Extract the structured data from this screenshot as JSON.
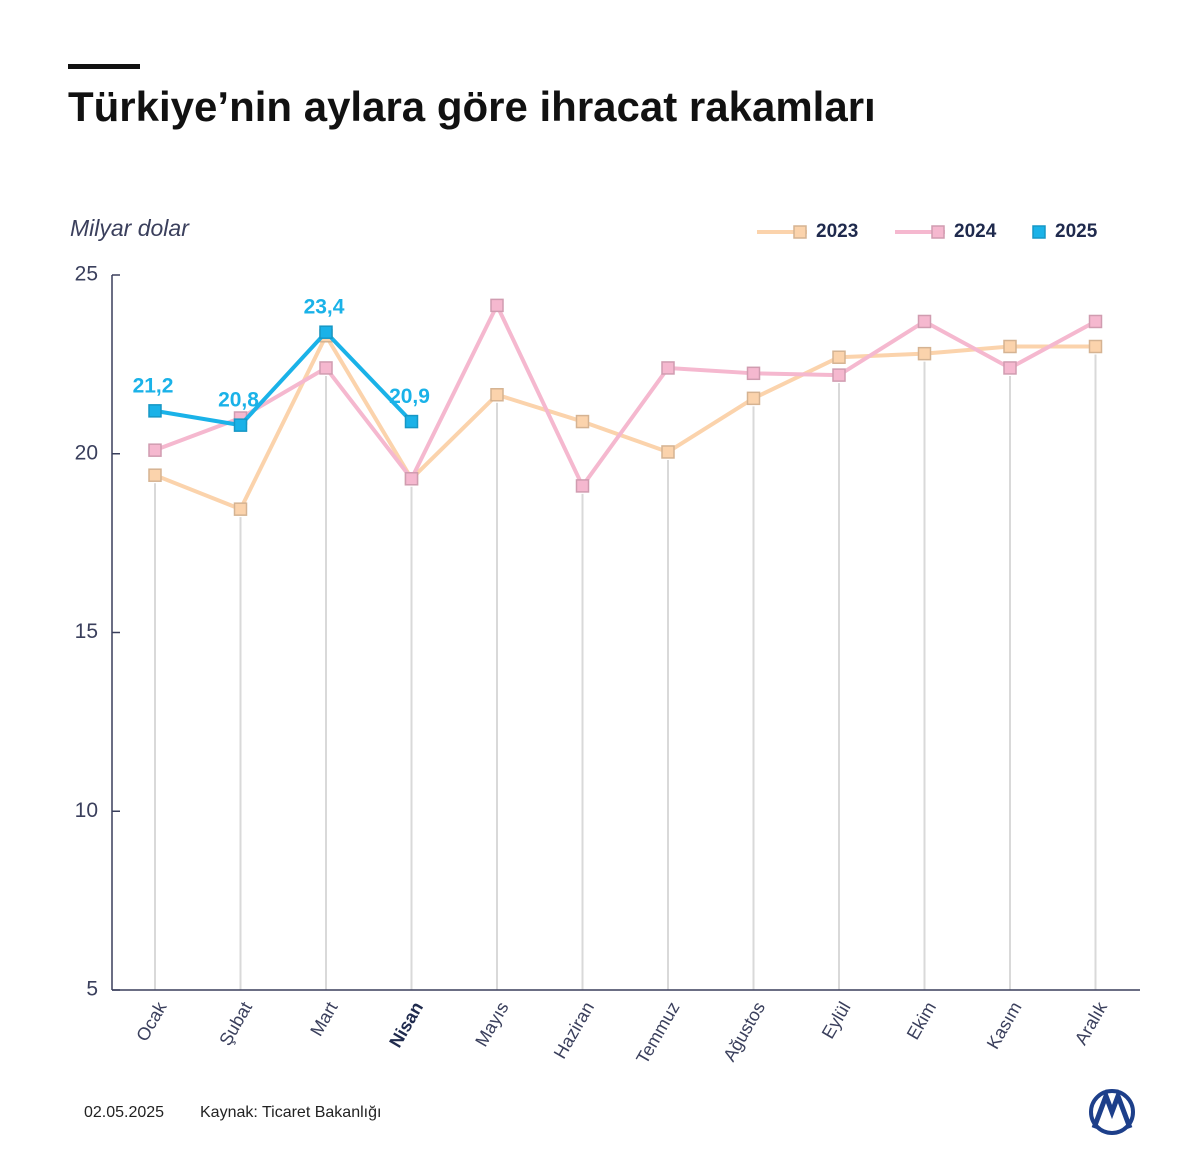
{
  "chart_data": {
    "type": "line",
    "title": "Türkiye’nin aylara göre ihracat rakamları",
    "y_axis_label": "Milyar dolar",
    "categories": [
      "Ocak",
      "Şubat",
      "Mart",
      "Nisan",
      "Mayıs",
      "Haziran",
      "Temmuz",
      "Ağustos",
      "Eylül",
      "Ekim",
      "Kasım",
      "Aralık"
    ],
    "series": [
      {
        "name": "2023",
        "color": "#fbd3ac",
        "values": [
          19.4,
          18.45,
          23.3,
          19.3,
          21.65,
          20.9,
          20.05,
          21.55,
          22.7,
          22.8,
          23.0,
          23.0
        ]
      },
      {
        "name": "2024",
        "color": "#f5b8cf",
        "values": [
          20.1,
          21.0,
          22.4,
          19.3,
          24.15,
          19.1,
          22.4,
          22.25,
          22.2,
          23.7,
          22.4,
          23.7
        ]
      },
      {
        "name": "2025",
        "color": "#1ab2e8",
        "values": [
          21.2,
          20.8,
          23.4,
          20.9,
          null,
          null,
          null,
          null,
          null,
          null,
          null,
          null
        ],
        "value_labels": [
          "21,2",
          "20,8",
          "23,4",
          "20,9",
          null,
          null,
          null,
          null,
          null,
          null,
          null,
          null
        ]
      }
    ],
    "ylim": [
      5,
      25
    ],
    "yticks": [
      5,
      10,
      15,
      20,
      25
    ],
    "legend": "top-right",
    "date": "02.05.2025",
    "source": "Kaynak: Ticaret Bakanlığı"
  }
}
